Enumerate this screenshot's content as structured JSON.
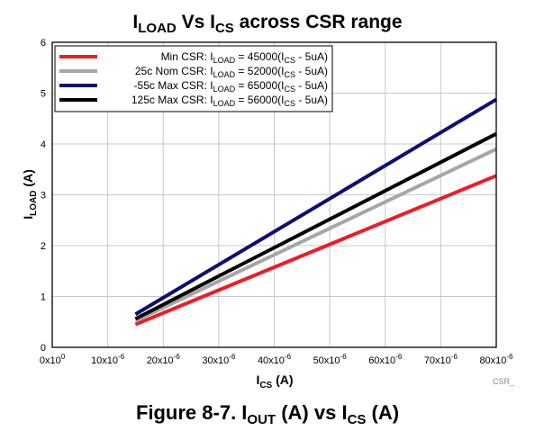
{
  "chart_data": {
    "type": "line",
    "title": {
      "main": "I",
      "sub": "LOAD",
      "mid": " Vs I",
      "sub2": "CS",
      "tail": " across CSR range"
    },
    "xlabel": {
      "main": "I",
      "sub": "CS",
      "tail": " (A)"
    },
    "ylabel": {
      "main": "I",
      "sub": "LOAD",
      "tail": " (A)"
    },
    "xlim": [
      0,
      8e-05
    ],
    "ylim": [
      0,
      6
    ],
    "x_ticks": [
      {
        "value": 0,
        "base": "0x10",
        "exp": "0"
      },
      {
        "value": 1e-05,
        "base": "10x10",
        "exp": "-6"
      },
      {
        "value": 2e-05,
        "base": "20x10",
        "exp": "-6"
      },
      {
        "value": 3e-05,
        "base": "30x10",
        "exp": "-6"
      },
      {
        "value": 4e-05,
        "base": "40x10",
        "exp": "-6"
      },
      {
        "value": 5e-05,
        "base": "50x10",
        "exp": "-6"
      },
      {
        "value": 6e-05,
        "base": "60x10",
        "exp": "-6"
      },
      {
        "value": 7e-05,
        "base": "70x10",
        "exp": "-6"
      },
      {
        "value": 8e-05,
        "base": "80x10",
        "exp": "-6"
      }
    ],
    "y_ticks": [
      "0",
      "1",
      "2",
      "3",
      "4",
      "5",
      "6"
    ],
    "grid": true,
    "legend_position": "top-left",
    "series": [
      {
        "name": {
          "pre": "Min CSR: I",
          "sub": "LOAD",
          "mid": " = 45000(I",
          "sub2": "CS",
          "tail": " - 5uA)"
        },
        "color": "#ee1c24",
        "x": [
          1.5e-05,
          8e-05
        ],
        "y": [
          0.45,
          3.375
        ]
      },
      {
        "name": {
          "pre": "25c Nom CSR: I",
          "sub": "LOAD",
          "mid": " = 52000(I",
          "sub2": "CS",
          "tail": " - 5uA)"
        },
        "color": "#a6a6a6",
        "x": [
          1.5e-05,
          8e-05
        ],
        "y": [
          0.52,
          3.9
        ]
      },
      {
        "name": {
          "pre": "-55c Max CSR: I",
          "sub": "LOAD",
          "mid": " = 65000(I",
          "sub2": "CS",
          "tail": " - 5uA)"
        },
        "color": "#0d0d73",
        "x": [
          1.5e-05,
          8e-05
        ],
        "y": [
          0.65,
          4.875
        ]
      },
      {
        "name": {
          "pre": "125c Max CSR: I",
          "sub": "LOAD",
          "mid": " = 56000(I",
          "sub2": "CS",
          "tail": " - 5uA)"
        },
        "color": "#000000",
        "x": [
          1.5e-05,
          8e-05
        ],
        "y": [
          0.56,
          4.2
        ]
      }
    ],
    "watermark": "CSR_"
  },
  "caption": {
    "pre": "Figure 8-7. I",
    "sub": "OUT",
    "mid": " (A) vs I",
    "sub2": "CS",
    "tail": " (A)"
  }
}
